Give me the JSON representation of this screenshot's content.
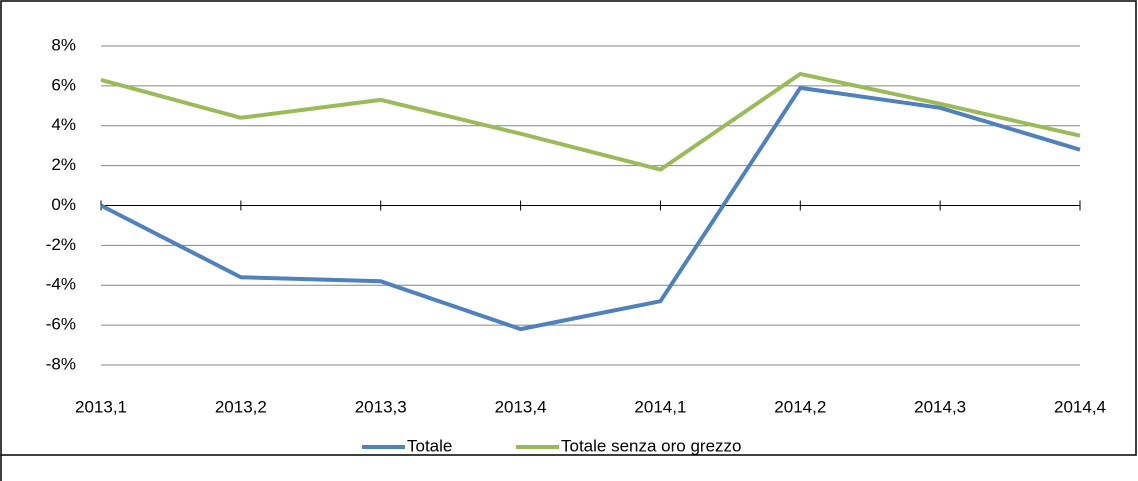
{
  "chart_data": {
    "type": "line",
    "categories": [
      "2013,1",
      "2013,2",
      "2013,3",
      "2013,4",
      "2014,1",
      "2014,2",
      "2014,3",
      "2014,4"
    ],
    "series": [
      {
        "name": "Totale",
        "color": "#4f81bd",
        "values": [
          0,
          -3.6,
          -3.8,
          -6.2,
          -4.8,
          5.9,
          4.9,
          2.8
        ]
      },
      {
        "name": "Totale senza oro grezzo",
        "color": "#9bbb59",
        "values": [
          6.3,
          4.4,
          5.3,
          3.6,
          1.8,
          6.6,
          5.1,
          3.5
        ]
      }
    ],
    "ylim": [
      -8,
      8
    ],
    "yticks": [
      {
        "value": -8,
        "label": "-8%"
      },
      {
        "value": -6,
        "label": "-6%"
      },
      {
        "value": -4,
        "label": "-4%"
      },
      {
        "value": -2,
        "label": "-2%"
      },
      {
        "value": 0,
        "label": "0%"
      },
      {
        "value": 2,
        "label": "2%"
      },
      {
        "value": 4,
        "label": "4%"
      },
      {
        "value": 6,
        "label": "6%"
      },
      {
        "value": 8,
        "label": "8%"
      }
    ],
    "grid": true,
    "legend": "bottom"
  }
}
